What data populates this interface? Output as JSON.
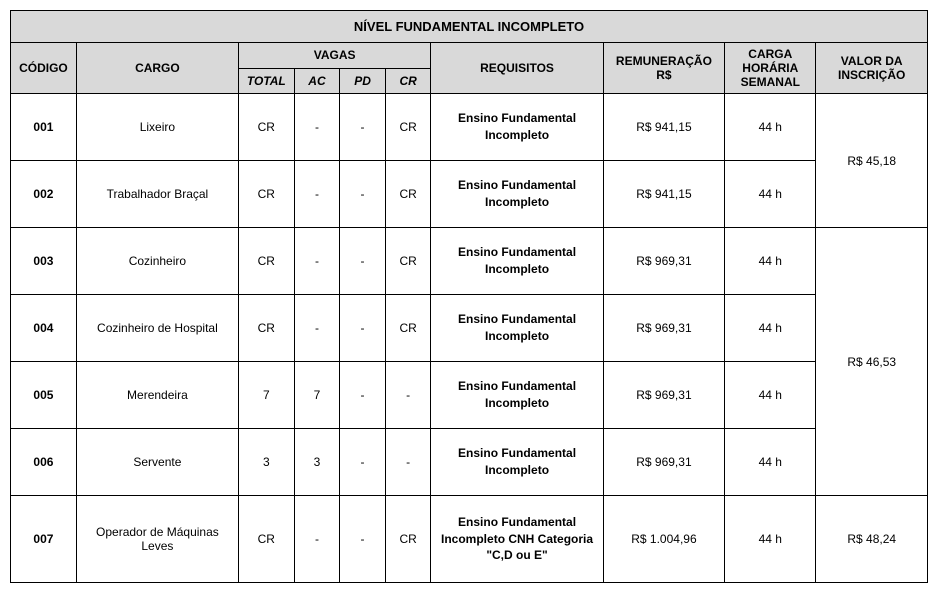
{
  "title": "NÍVEL FUNDAMENTAL INCOMPLETO",
  "headers": {
    "codigo": "CÓDIGO",
    "cargo": "CARGO",
    "vagas": "VAGAS",
    "requisitos": "REQUISITOS",
    "remuneracao_line1": "REMUNERAÇÃO",
    "remuneracao_line2": "R$",
    "carga_line1": "CARGA",
    "carga_line2": "HORÁRIA",
    "carga_line3": "SEMANAL",
    "inscricao_line1": "VALOR DA",
    "inscricao_line2": "INSCRIÇÃO",
    "sub_total": "TOTAL",
    "sub_ac": "AC",
    "sub_pd": "PD",
    "sub_cr": "CR"
  },
  "rows": [
    {
      "codigo": "001",
      "cargo": "Lixeiro",
      "total": "CR",
      "ac": "-",
      "pd": "-",
      "cr": "CR",
      "req": "Ensino Fundamental Incompleto",
      "rem": "R$ 941,15",
      "carga": "44 h"
    },
    {
      "codigo": "002",
      "cargo": "Trabalhador Braçal",
      "total": "CR",
      "ac": "-",
      "pd": "-",
      "cr": "CR",
      "req": "Ensino Fundamental Incompleto",
      "rem": "R$ 941,15",
      "carga": "44 h"
    },
    {
      "codigo": "003",
      "cargo": "Cozinheiro",
      "total": "CR",
      "ac": "-",
      "pd": "-",
      "cr": "CR",
      "req": "Ensino Fundamental Incompleto",
      "rem": "R$ 969,31",
      "carga": "44 h"
    },
    {
      "codigo": "004",
      "cargo": "Cozinheiro de Hospital",
      "total": "CR",
      "ac": "-",
      "pd": "-",
      "cr": "CR",
      "req": "Ensino Fundamental Incompleto",
      "rem": "R$ 969,31",
      "carga": "44 h"
    },
    {
      "codigo": "005",
      "cargo": "Merendeira",
      "total": "7",
      "ac": "7",
      "pd": "-",
      "cr": "-",
      "req": "Ensino Fundamental Incompleto",
      "rem": "R$ 969,31",
      "carga": "44 h"
    },
    {
      "codigo": "006",
      "cargo": "Servente",
      "total": "3",
      "ac": "3",
      "pd": "-",
      "cr": "-",
      "req": "Ensino Fundamental Incompleto",
      "rem": "R$ 969,31",
      "carga": "44 h"
    },
    {
      "codigo": "007",
      "cargo": "Operador de Máquinas Leves",
      "total": "CR",
      "ac": "-",
      "pd": "-",
      "cr": "CR",
      "req": "Ensino Fundamental Incompleto CNH Categoria \"C,D ou E\"",
      "rem": "R$ 1.004,96",
      "carga": "44 h"
    }
  ],
  "insc": {
    "g1": "R$ 45,18",
    "g2": "R$ 46,53",
    "g3": "R$ 48,24"
  }
}
